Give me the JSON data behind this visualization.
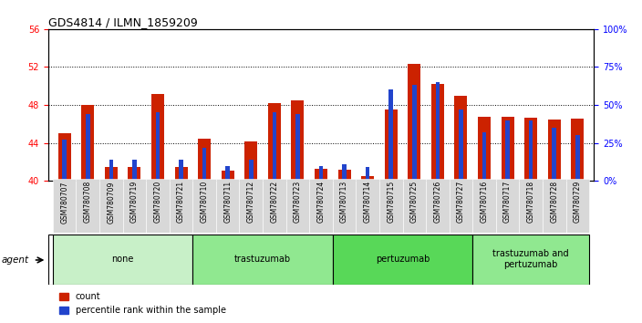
{
  "title": "GDS4814 / ILMN_1859209",
  "samples": [
    "GSM780707",
    "GSM780708",
    "GSM780709",
    "GSM780719",
    "GSM780720",
    "GSM780721",
    "GSM780710",
    "GSM780711",
    "GSM780712",
    "GSM780722",
    "GSM780723",
    "GSM780724",
    "GSM780713",
    "GSM780714",
    "GSM780715",
    "GSM780725",
    "GSM780726",
    "GSM780727",
    "GSM780716",
    "GSM780717",
    "GSM780718",
    "GSM780728",
    "GSM780729"
  ],
  "count_values": [
    45.0,
    48.0,
    41.5,
    41.5,
    49.2,
    41.5,
    44.4,
    41.1,
    44.2,
    48.2,
    48.5,
    41.3,
    41.2,
    40.5,
    47.5,
    52.3,
    50.2,
    49.0,
    46.8,
    46.8,
    46.7,
    46.5,
    46.6
  ],
  "percentile_values": [
    27,
    44,
    14,
    14,
    45,
    14,
    22,
    10,
    14,
    45,
    44,
    10,
    11,
    9,
    60,
    63,
    65,
    47,
    32,
    40,
    40,
    35,
    30
  ],
  "groups": [
    {
      "label": "none",
      "start": 0,
      "end": 6,
      "color": "#c8f0c8"
    },
    {
      "label": "trastuzumab",
      "start": 6,
      "end": 12,
      "color": "#90e890"
    },
    {
      "label": "pertuzumab",
      "start": 12,
      "end": 18,
      "color": "#58d858"
    },
    {
      "label": "trastuzumab and\npertuzumab",
      "start": 18,
      "end": 23,
      "color": "#90e890"
    }
  ],
  "ylim_left": [
    40,
    56
  ],
  "ylim_right": [
    0,
    100
  ],
  "yticks_left": [
    40,
    44,
    48,
    52,
    56
  ],
  "yticks_right": [
    0,
    25,
    50,
    75,
    100
  ],
  "yticklabels_right": [
    "0%",
    "25%",
    "50%",
    "75%",
    "100%"
  ],
  "bar_color_red": "#cc2200",
  "bar_color_blue": "#2244cc",
  "bar_width": 0.55,
  "blue_bar_width": 0.18,
  "bg_color": "#ffffff",
  "title_fontsize": 9,
  "tick_fontsize": 7,
  "sample_fontsize": 5.5,
  "group_fontsize": 7,
  "legend_fontsize": 7
}
